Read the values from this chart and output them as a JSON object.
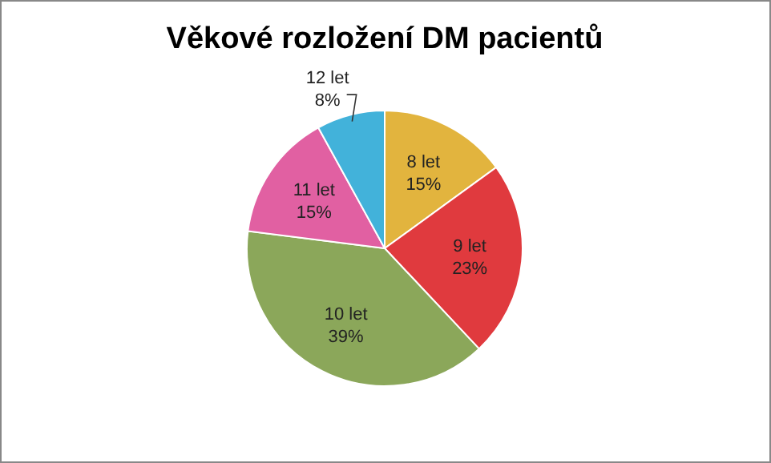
{
  "chart_data": {
    "type": "pie",
    "title": "Věkové rozložení DM pacientů",
    "categories": [
      "8 let",
      "9 let",
      "10 let",
      "11 let",
      "12 let"
    ],
    "values": [
      15,
      23,
      39,
      15,
      8
    ],
    "value_labels": [
      "15%",
      "23%",
      "39%",
      "15%",
      "8%"
    ],
    "colors": [
      "#e2b43e",
      "#e03a3e",
      "#8ba75a",
      "#e160a2",
      "#42b2da"
    ]
  }
}
